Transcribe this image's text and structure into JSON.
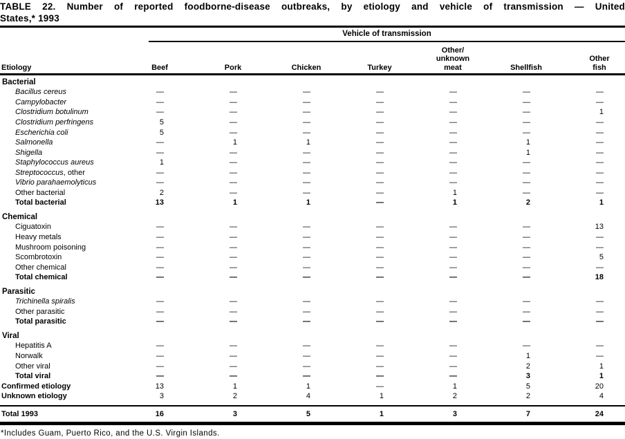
{
  "page": {
    "title_line1": "TABLE 22. Number of reported foodborne-disease outbreaks, by etiology and vehicle of transmission — United",
    "title_line2": "States,* 1993",
    "footnote": "*Includes Guam, Puerto Rico, and the U.S. Virgin Islands."
  },
  "table": {
    "spanner_label": "Vehicle of transmission",
    "stub_header": "Etiology",
    "columns": [
      {
        "id": "beef",
        "lines": [
          "Beef"
        ]
      },
      {
        "id": "pork",
        "lines": [
          "Pork"
        ]
      },
      {
        "id": "chicken",
        "lines": [
          "Chicken"
        ]
      },
      {
        "id": "turkey",
        "lines": [
          "Turkey"
        ]
      },
      {
        "id": "other-unknown-meat",
        "lines": [
          "Other/",
          "unknown",
          "meat"
        ]
      },
      {
        "id": "shellfish",
        "lines": [
          "Shellfish"
        ]
      },
      {
        "id": "other-fish",
        "lines": [
          "Other",
          "fish"
        ]
      }
    ],
    "sections": [
      {
        "name": "Bacterial",
        "rows": [
          {
            "kind": "data",
            "em": "Bacillus cereus",
            "rest": "",
            "values": [
              "—",
              "—",
              "—",
              "—",
              "—",
              "—",
              "—"
            ]
          },
          {
            "kind": "data",
            "em": "Campylobacter",
            "rest": "",
            "values": [
              "—",
              "—",
              "—",
              "—",
              "—",
              "—",
              "—"
            ]
          },
          {
            "kind": "data",
            "em": "Clostridium botulinum",
            "rest": "",
            "values": [
              "—",
              "—",
              "—",
              "—",
              "—",
              "—",
              "1"
            ]
          },
          {
            "kind": "data",
            "em": "Clostridium perfringens",
            "rest": "",
            "values": [
              "5",
              "—",
              "—",
              "—",
              "—",
              "—",
              "—"
            ]
          },
          {
            "kind": "data",
            "em": "Escherichia coli",
            "rest": "",
            "values": [
              "5",
              "—",
              "—",
              "—",
              "—",
              "—",
              "—"
            ]
          },
          {
            "kind": "data",
            "em": "Salmonella",
            "rest": "",
            "values": [
              "—",
              "1",
              "1",
              "—",
              "—",
              "1",
              "—"
            ]
          },
          {
            "kind": "data",
            "em": "Shigella",
            "rest": "",
            "values": [
              "—",
              "—",
              "—",
              "—",
              "—",
              "1",
              "—"
            ]
          },
          {
            "kind": "data",
            "em": "Staphylococcus aureus",
            "rest": "",
            "values": [
              "1",
              "—",
              "—",
              "—",
              "—",
              "—",
              "—"
            ]
          },
          {
            "kind": "data",
            "em": "Streptococcus",
            "rest": ", other",
            "values": [
              "—",
              "—",
              "—",
              "—",
              "—",
              "—",
              "—"
            ]
          },
          {
            "kind": "data",
            "em": "Vibrio parahaemolyticus",
            "rest": "",
            "values": [
              "—",
              "—",
              "—",
              "—",
              "—",
              "—",
              "—"
            ]
          },
          {
            "kind": "data",
            "em": "",
            "rest": "Other bacterial",
            "values": [
              "2",
              "—",
              "—",
              "—",
              "1",
              "—",
              "—"
            ]
          },
          {
            "kind": "total",
            "em": "",
            "rest": "Total bacterial",
            "values": [
              "13",
              "1",
              "1",
              "—",
              "1",
              "2",
              "1"
            ]
          }
        ]
      },
      {
        "name": "Chemical",
        "rows": [
          {
            "kind": "data",
            "em": "",
            "rest": "Ciguatoxin",
            "values": [
              "—",
              "—",
              "—",
              "—",
              "—",
              "—",
              "13"
            ]
          },
          {
            "kind": "data",
            "em": "",
            "rest": "Heavy metals",
            "values": [
              "—",
              "—",
              "—",
              "—",
              "—",
              "—",
              "—"
            ]
          },
          {
            "kind": "data",
            "em": "",
            "rest": "Mushroom poisoning",
            "values": [
              "—",
              "—",
              "—",
              "—",
              "—",
              "—",
              "—"
            ]
          },
          {
            "kind": "data",
            "em": "",
            "rest": "Scombrotoxin",
            "values": [
              "—",
              "—",
              "—",
              "—",
              "—",
              "—",
              "5"
            ]
          },
          {
            "kind": "data",
            "em": "",
            "rest": "Other chemical",
            "values": [
              "—",
              "—",
              "—",
              "—",
              "—",
              "—",
              "—"
            ]
          },
          {
            "kind": "total",
            "em": "",
            "rest": "Total chemical",
            "values": [
              "—",
              "—",
              "—",
              "—",
              "—",
              "—",
              "18"
            ]
          }
        ]
      },
      {
        "name": "Parasitic",
        "rows": [
          {
            "kind": "data",
            "em": "Trichinella spiralis",
            "rest": "",
            "values": [
              "—",
              "—",
              "—",
              "—",
              "—",
              "—",
              "—"
            ]
          },
          {
            "kind": "data",
            "em": "",
            "rest": "Other parasitic",
            "values": [
              "—",
              "—",
              "—",
              "—",
              "—",
              "—",
              "—"
            ]
          },
          {
            "kind": "total",
            "em": "",
            "rest": "Total parasitic",
            "values": [
              "—",
              "—",
              "—",
              "—",
              "—",
              "—",
              "—"
            ]
          }
        ]
      },
      {
        "name": "Viral",
        "rows": [
          {
            "kind": "data",
            "em": "",
            "rest": "Hepatitis A",
            "values": [
              "—",
              "—",
              "—",
              "—",
              "—",
              "—",
              "—"
            ]
          },
          {
            "kind": "data",
            "em": "",
            "rest": "Norwalk",
            "values": [
              "—",
              "—",
              "—",
              "—",
              "—",
              "1",
              "—"
            ]
          },
          {
            "kind": "data",
            "em": "",
            "rest": "Other viral",
            "values": [
              "—",
              "—",
              "—",
              "—",
              "—",
              "2",
              "1"
            ]
          },
          {
            "kind": "total",
            "em": "",
            "rest": "Total viral",
            "values": [
              "—",
              "—",
              "—",
              "—",
              "—",
              "3",
              "1"
            ]
          }
        ]
      }
    ],
    "summary_rows": [
      {
        "kind": "summary",
        "em": "",
        "rest": "Confirmed etiology",
        "values": [
          "13",
          "1",
          "1",
          "—",
          "1",
          "5",
          "20"
        ]
      },
      {
        "kind": "summary",
        "em": "",
        "rest": "Unknown etiology",
        "values": [
          "3",
          "2",
          "4",
          "1",
          "2",
          "2",
          "4"
        ]
      }
    ],
    "total_row": {
      "kind": "grand",
      "em": "",
      "rest": "Total 1993",
      "values": [
        "16",
        "3",
        "5",
        "1",
        "3",
        "7",
        "24"
      ]
    }
  }
}
